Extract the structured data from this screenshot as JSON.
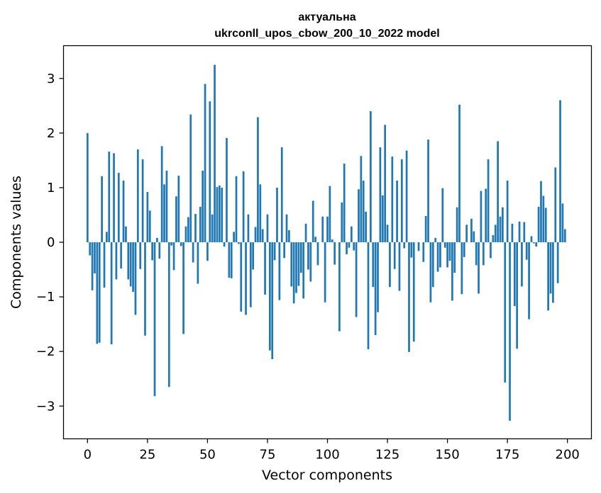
{
  "chart_data": {
    "type": "bar",
    "title": "актуальна",
    "subtitle": "ukrconll_upos_cbow_200_10_2022 model",
    "xlabel": "Vector components",
    "ylabel": "Components values",
    "xlim": [
      -10,
      210
    ],
    "ylim": [
      -3.6,
      3.6
    ],
    "xticks": [
      0,
      25,
      50,
      75,
      100,
      125,
      150,
      175,
      200
    ],
    "yticks": [
      -3,
      -2,
      -1,
      0,
      1,
      2,
      3
    ],
    "grid": false,
    "bar_color": "#1f77b4",
    "x": "0..199",
    "values": [
      2.0,
      -0.24,
      -0.88,
      -0.57,
      -1.86,
      -1.84,
      1.21,
      -0.83,
      0.19,
      1.66,
      -1.87,
      1.63,
      -0.68,
      1.27,
      -0.48,
      1.13,
      0.29,
      -0.68,
      -0.81,
      -0.91,
      -1.33,
      1.7,
      -0.49,
      1.52,
      -1.71,
      0.92,
      0.58,
      -0.33,
      -2.82,
      0.08,
      -0.3,
      1.76,
      1.06,
      1.31,
      -2.65,
      -0.06,
      -0.51,
      0.84,
      1.22,
      -0.07,
      -1.68,
      0.29,
      0.46,
      2.34,
      -0.37,
      0.52,
      -0.76,
      0.65,
      1.31,
      2.9,
      -0.34,
      2.58,
      0.51,
      3.25,
      1.01,
      1.04,
      1.0,
      -0.08,
      1.91,
      -0.65,
      -0.66,
      0.19,
      1.21,
      -0.03,
      -1.27,
      1.3,
      -1.33,
      0.51,
      -1.19,
      -0.5,
      0.28,
      2.29,
      1.06,
      0.24,
      -0.96,
      0.51,
      -1.98,
      -2.14,
      -0.33,
      1.0,
      -1.06,
      1.74,
      -0.29,
      0.51,
      0.22,
      -0.81,
      -1.12,
      -0.93,
      -0.8,
      -0.56,
      -1.03,
      0.34,
      -0.5,
      -0.72,
      0.76,
      0.1,
      -0.42,
      0.0,
      0.47,
      -1.1,
      0.47,
      1.03,
      0.05,
      -0.41,
      0.0,
      -1.63,
      0.73,
      1.44,
      -0.22,
      -0.1,
      0.29,
      -0.15,
      -1.37,
      0.97,
      1.58,
      1.13,
      0.56,
      -1.96,
      2.4,
      -0.82,
      -1.7,
      -1.28,
      1.74,
      0.86,
      2.15,
      0.32,
      -0.82,
      1.57,
      -0.49,
      1.13,
      -0.89,
      1.52,
      -0.11,
      1.68,
      -2.01,
      -0.28,
      -1.82,
      0.0,
      -0.16,
      0.0,
      -0.36,
      0.48,
      1.88,
      -1.1,
      -0.82,
      0.08,
      -0.54,
      -0.46,
      0.99,
      -0.1,
      -0.46,
      -0.34,
      -1.07,
      -0.56,
      0.64,
      2.52,
      -0.95,
      -0.27,
      0.32,
      0.0,
      0.43,
      0.2,
      -0.42,
      -0.94,
      0.94,
      -0.42,
      0.98,
      1.52,
      -0.29,
      0.13,
      0.32,
      1.85,
      0.47,
      0.64,
      -2.57,
      1.13,
      -3.27,
      0.34,
      -1.17,
      -1.95,
      0.38,
      -0.81,
      0.37,
      -0.32,
      -1.41,
      0.11,
      -0.02,
      -0.08,
      0.65,
      1.12,
      0.85,
      0.63,
      -1.25,
      -0.94,
      -1.11,
      1.37,
      -0.75,
      2.6,
      0.71,
      0.24
    ]
  }
}
